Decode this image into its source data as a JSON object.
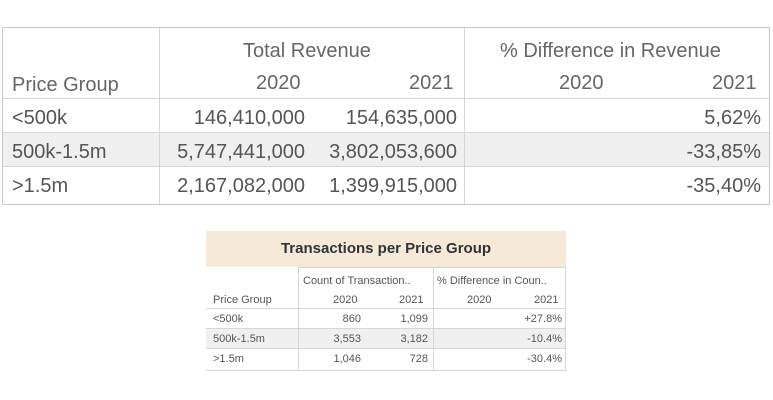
{
  "revenue_table": {
    "total_revenue_header": "Total Revenue",
    "pct_diff_header": "% Difference in Revenue",
    "dim_header": "Price Group",
    "years": [
      "2020",
      "2021"
    ],
    "pct_years": [
      "2020",
      "2021"
    ],
    "rows": [
      {
        "group": "<500k",
        "rev_2020": "146,410,000",
        "rev_2021": "154,635,000",
        "pct_2020": "",
        "pct_2021": "5,62%"
      },
      {
        "group": "500k-1.5m",
        "rev_2020": "5,747,441,000",
        "rev_2021": "3,802,053,600",
        "pct_2020": "",
        "pct_2021": "-33,85%"
      },
      {
        "group": ">1.5m",
        "rev_2020": "2,167,082,000",
        "rev_2021": "1,399,915,000",
        "pct_2020": "",
        "pct_2021": "-35,40%"
      }
    ]
  },
  "transactions_table": {
    "title": "Transactions per Price Group",
    "count_header": "Count of Transaction..",
    "pct_diff_header": "% Difference in Coun..",
    "dim_header": "Price Group",
    "years": [
      "2020",
      "2021"
    ],
    "pct_years": [
      "2020",
      "2021"
    ],
    "rows": [
      {
        "group": "<500k",
        "cnt_2020": "860",
        "cnt_2021": "1,099",
        "pct_2020": "",
        "pct_2021": "+27.8%"
      },
      {
        "group": "500k-1.5m",
        "cnt_2020": "3,553",
        "cnt_2021": "3,182",
        "pct_2020": "",
        "pct_2021": "-10.4%"
      },
      {
        "group": ">1.5m",
        "cnt_2020": "1,046",
        "cnt_2021": "728",
        "pct_2020": "",
        "pct_2021": "-30.4%"
      }
    ]
  }
}
